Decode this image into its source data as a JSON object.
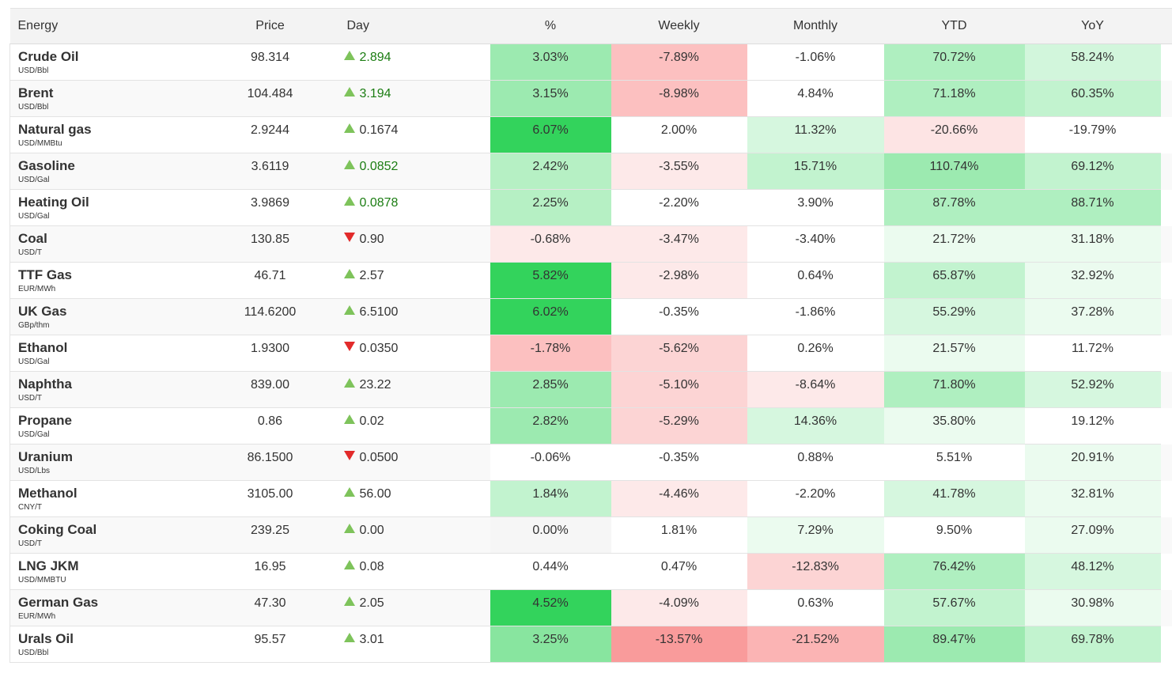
{
  "headers": [
    "Energy",
    "Price",
    "Day",
    "%",
    "Weekly",
    "Monthly",
    "YTD",
    "YoY"
  ],
  "rows": [
    {
      "name": "Crude Oil",
      "unit": "USD/Bbl",
      "price": "98.314",
      "day": "2.894",
      "dir": "up",
      "day_green": true,
      "pct": "3.03%",
      "pct_bg": "#9ceab0",
      "weekly": "-7.89%",
      "weekly_bg": "#fcc0c0",
      "monthly": "-1.06%",
      "monthly_bg": "#ffffff",
      "ytd": "70.72%",
      "ytd_bg": "#afefc0",
      "yoy": "58.24%",
      "yoy_bg": "#d2f6dc"
    },
    {
      "name": "Brent",
      "unit": "USD/Bbl",
      "price": "104.484",
      "day": "3.194",
      "dir": "up",
      "day_green": true,
      "pct": "3.15%",
      "pct_bg": "#9ceab0",
      "weekly": "-8.98%",
      "weekly_bg": "#fcc0c0",
      "monthly": "4.84%",
      "monthly_bg": "#ffffff",
      "ytd": "71.18%",
      "ytd_bg": "#afefc0",
      "yoy": "60.35%",
      "yoy_bg": "#c2f3cf"
    },
    {
      "name": "Natural gas",
      "unit": "USD/MMBtu",
      "price": "2.9244",
      "day": "0.1674",
      "dir": "up",
      "day_green": false,
      "pct": "6.07%",
      "pct_bg": "#33d35c",
      "weekly": "2.00%",
      "weekly_bg": "#ffffff",
      "monthly": "11.32%",
      "monthly_bg": "#d6f7df",
      "ytd": "-20.66%",
      "ytd_bg": "#fde4e4",
      "yoy": "-19.79%",
      "yoy_bg": "#ffffff"
    },
    {
      "name": "Gasoline",
      "unit": "USD/Gal",
      "price": "3.6119",
      "day": "0.0852",
      "dir": "up",
      "day_green": true,
      "pct": "2.42%",
      "pct_bg": "#b6f0c4",
      "weekly": "-3.55%",
      "weekly_bg": "#fde9e9",
      "monthly": "15.71%",
      "monthly_bg": "#c2f3cf",
      "ytd": "110.74%",
      "ytd_bg": "#9ceab0",
      "yoy": "69.12%",
      "yoy_bg": "#c2f3cf"
    },
    {
      "name": "Heating Oil",
      "unit": "USD/Gal",
      "price": "3.9869",
      "day": "0.0878",
      "dir": "up",
      "day_green": true,
      "pct": "2.25%",
      "pct_bg": "#b6f0c4",
      "weekly": "-2.20%",
      "weekly_bg": "#ffffff",
      "monthly": "3.90%",
      "monthly_bg": "#ffffff",
      "ytd": "87.78%",
      "ytd_bg": "#afefc0",
      "yoy": "88.71%",
      "yoy_bg": "#afefc0"
    },
    {
      "name": "Coal",
      "unit": "USD/T",
      "price": "130.85",
      "day": "0.90",
      "dir": "down",
      "day_green": false,
      "pct": "-0.68%",
      "pct_bg": "#fde9e9",
      "weekly": "-3.47%",
      "weekly_bg": "#fde9e9",
      "monthly": "-3.40%",
      "monthly_bg": "#ffffff",
      "ytd": "21.72%",
      "ytd_bg": "#ebfbef",
      "yoy": "31.18%",
      "yoy_bg": "#ebfbef"
    },
    {
      "name": "TTF Gas",
      "unit": "EUR/MWh",
      "price": "46.71",
      "day": "2.57",
      "dir": "up",
      "day_green": false,
      "pct": "5.82%",
      "pct_bg": "#33d35c",
      "weekly": "-2.98%",
      "weekly_bg": "#fde9e9",
      "monthly": "0.64%",
      "monthly_bg": "#ffffff",
      "ytd": "65.87%",
      "ytd_bg": "#c2f3cf",
      "yoy": "32.92%",
      "yoy_bg": "#ebfbef"
    },
    {
      "name": "UK Gas",
      "unit": "GBp/thm",
      "price": "114.6200",
      "day": "6.5100",
      "dir": "up",
      "day_green": false,
      "pct": "6.02%",
      "pct_bg": "#33d35c",
      "weekly": "-0.35%",
      "weekly_bg": "#ffffff",
      "monthly": "-1.86%",
      "monthly_bg": "#ffffff",
      "ytd": "55.29%",
      "ytd_bg": "#d6f7df",
      "yoy": "37.28%",
      "yoy_bg": "#ebfbef"
    },
    {
      "name": "Ethanol",
      "unit": "USD/Gal",
      "price": "1.9300",
      "day": "0.0350",
      "dir": "down",
      "day_green": false,
      "pct": "-1.78%",
      "pct_bg": "#fcc0c0",
      "weekly": "-5.62%",
      "weekly_bg": "#fcd4d4",
      "monthly": "0.26%",
      "monthly_bg": "#ffffff",
      "ytd": "21.57%",
      "ytd_bg": "#ebfbef",
      "yoy": "11.72%",
      "yoy_bg": "#ffffff"
    },
    {
      "name": "Naphtha",
      "unit": "USD/T",
      "price": "839.00",
      "day": "23.22",
      "dir": "up",
      "day_green": false,
      "pct": "2.85%",
      "pct_bg": "#9ceab0",
      "weekly": "-5.10%",
      "weekly_bg": "#fcd4d4",
      "monthly": "-8.64%",
      "monthly_bg": "#fde9e9",
      "ytd": "71.80%",
      "ytd_bg": "#afefc0",
      "yoy": "52.92%",
      "yoy_bg": "#d6f7df"
    },
    {
      "name": "Propane",
      "unit": "USD/Gal",
      "price": "0.86",
      "day": "0.02",
      "dir": "up",
      "day_green": false,
      "pct": "2.82%",
      "pct_bg": "#9ceab0",
      "weekly": "-5.29%",
      "weekly_bg": "#fcd4d4",
      "monthly": "14.36%",
      "monthly_bg": "#d6f7df",
      "ytd": "35.80%",
      "ytd_bg": "#ebfbef",
      "yoy": "19.12%",
      "yoy_bg": "#ffffff"
    },
    {
      "name": "Uranium",
      "unit": "USD/Lbs",
      "price": "86.1500",
      "day": "0.0500",
      "dir": "down",
      "day_green": false,
      "pct": "-0.06%",
      "pct_bg": "#ffffff",
      "weekly": "-0.35%",
      "weekly_bg": "#ffffff",
      "monthly": "0.88%",
      "monthly_bg": "#ffffff",
      "ytd": "5.51%",
      "ytd_bg": "#ffffff",
      "yoy": "20.91%",
      "yoy_bg": "#ebfbef"
    },
    {
      "name": "Methanol",
      "unit": "CNY/T",
      "price": "3105.00",
      "day": "56.00",
      "dir": "up",
      "day_green": false,
      "pct": "1.84%",
      "pct_bg": "#c2f3cf",
      "weekly": "-4.46%",
      "weekly_bg": "#fde9e9",
      "monthly": "-2.20%",
      "monthly_bg": "#ffffff",
      "ytd": "41.78%",
      "ytd_bg": "#d6f7df",
      "yoy": "32.81%",
      "yoy_bg": "#ebfbef"
    },
    {
      "name": "Coking Coal",
      "unit": "USD/T",
      "price": "239.25",
      "day": "0.00",
      "dir": "up",
      "day_green": false,
      "pct": "0.00%",
      "pct_bg": "#f6f6f6",
      "weekly": "1.81%",
      "weekly_bg": "#ffffff",
      "monthly": "7.29%",
      "monthly_bg": "#ebfbef",
      "ytd": "9.50%",
      "ytd_bg": "#ffffff",
      "yoy": "27.09%",
      "yoy_bg": "#ebfbef"
    },
    {
      "name": "LNG JKM",
      "unit": "USD/MMBTU",
      "price": "16.95",
      "day": "0.08",
      "dir": "up",
      "day_green": false,
      "pct": "0.44%",
      "pct_bg": "#ffffff",
      "weekly": "0.47%",
      "weekly_bg": "#ffffff",
      "monthly": "-12.83%",
      "monthly_bg": "#fcd4d4",
      "ytd": "76.42%",
      "ytd_bg": "#afefc0",
      "yoy": "48.12%",
      "yoy_bg": "#d6f7df"
    },
    {
      "name": "German Gas",
      "unit": "EUR/MWh",
      "price": "47.30",
      "day": "2.05",
      "dir": "up",
      "day_green": false,
      "pct": "4.52%",
      "pct_bg": "#33d35c",
      "weekly": "-4.09%",
      "weekly_bg": "#fde9e9",
      "monthly": "0.63%",
      "monthly_bg": "#ffffff",
      "ytd": "57.67%",
      "ytd_bg": "#c2f3cf",
      "yoy": "30.98%",
      "yoy_bg": "#ebfbef"
    },
    {
      "name": "Urals Oil",
      "unit": "USD/Bbl",
      "price": "95.57",
      "day": "3.01",
      "dir": "up",
      "day_green": false,
      "pct": "3.25%",
      "pct_bg": "#88e59f",
      "weekly": "-13.57%",
      "weekly_bg": "#f99b9b",
      "monthly": "-21.52%",
      "monthly_bg": "#fbb4b4",
      "ytd": "89.47%",
      "ytd_bg": "#9ceab0",
      "yoy": "69.78%",
      "yoy_bg": "#c2f3cf"
    }
  ]
}
